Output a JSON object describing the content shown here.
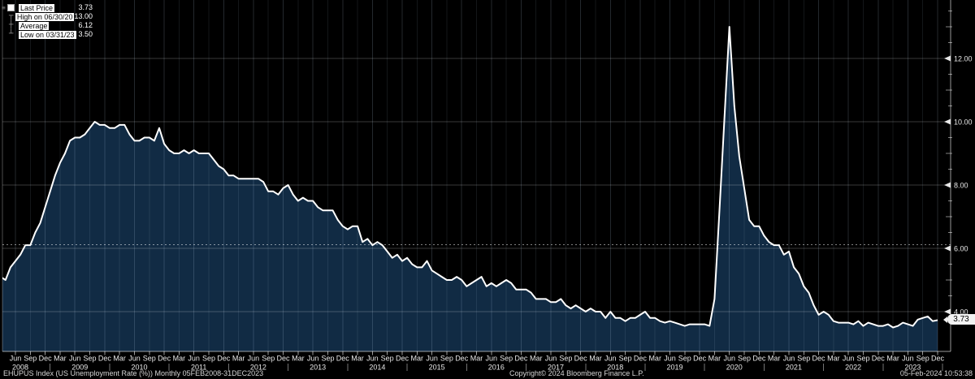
{
  "legend": {
    "rows": [
      {
        "label": "Last Price",
        "value": "3.73"
      },
      {
        "label": "High on 06/30/20",
        "value": "13.00"
      },
      {
        "label": "Average",
        "value": "6.12"
      },
      {
        "label": "Low on 03/31/23",
        "value": "3.50"
      }
    ]
  },
  "y_axis": {
    "tick_labels": [
      "4.00",
      "6.00",
      "8.00",
      "10.00",
      "12.00"
    ],
    "last_price_badge": "3.73"
  },
  "x_axis": {
    "tick_cycle": [
      "Mar",
      "Jun",
      "Sep",
      "Dec"
    ],
    "first_tick": "Jun 2008",
    "last_tick": "Dec 2023",
    "years": [
      "2008",
      "2009",
      "2010",
      "2011",
      "2012",
      "2013",
      "2014",
      "2015",
      "2016",
      "2017",
      "2018",
      "2019",
      "2020",
      "2021",
      "2022",
      "2023"
    ]
  },
  "footer": {
    "left": "EHUPUS Index (US Unemployment Rate (%))  Monthly 05FEB2008-31DEC2023",
    "center": "Copyright© 2024 Bloomberg Finance L.P.",
    "right": "05-Feb-2024 10:53:38"
  },
  "colors": {
    "background": "#000000",
    "area_fill": "#112b44",
    "line": "#ffffff",
    "grid_horizontal": "rgba(255,255,255,0.22)",
    "grid_vertical_minor": "rgba(173,200,224,0.11)",
    "grid_vertical_major": "rgba(173,200,224,0.20)",
    "average_line": "rgba(255,255,255,0.5)",
    "axis": "rgba(255,255,255,0.6)",
    "tick_text": "#e8e8e8",
    "badge_bg": "#f2f2f2"
  },
  "chart_data": {
    "type": "area",
    "title": "EHUPUS Index (US Unemployment Rate (%)) Monthly",
    "x_start": "2008-02",
    "x_end": "2023-12",
    "x_frequency": "monthly",
    "ylabel": "Unemployment Rate (%)",
    "ylim": [
      2.8,
      13.9
    ],
    "y_gridlines": [
      4,
      6,
      8,
      10,
      12
    ],
    "grid": true,
    "legend_position": "top-left",
    "average_line": 6.12,
    "high": {
      "date": "06/30/20",
      "value": 13.0
    },
    "low": {
      "date": "03/31/23",
      "value": 3.5
    },
    "last_price": {
      "date": "12/31/23",
      "value": 3.73
    },
    "values": [
      4.9,
      5.1,
      5.0,
      5.4,
      5.6,
      5.8,
      6.1,
      6.1,
      6.5,
      6.8,
      7.3,
      7.8,
      8.3,
      8.7,
      9.0,
      9.4,
      9.5,
      9.5,
      9.6,
      9.8,
      10.0,
      9.9,
      9.9,
      9.8,
      9.8,
      9.9,
      9.9,
      9.6,
      9.4,
      9.4,
      9.5,
      9.5,
      9.4,
      9.8,
      9.3,
      9.1,
      9.0,
      9.0,
      9.1,
      9.0,
      9.1,
      9.0,
      9.0,
      9.0,
      8.8,
      8.6,
      8.5,
      8.3,
      8.3,
      8.2,
      8.2,
      8.2,
      8.2,
      8.2,
      8.1,
      7.8,
      7.8,
      7.7,
      7.9,
      8.0,
      7.7,
      7.5,
      7.6,
      7.5,
      7.5,
      7.3,
      7.2,
      7.2,
      7.2,
      6.9,
      6.7,
      6.6,
      6.7,
      6.7,
      6.2,
      6.3,
      6.1,
      6.2,
      6.1,
      5.9,
      5.7,
      5.8,
      5.6,
      5.7,
      5.5,
      5.4,
      5.4,
      5.6,
      5.3,
      5.2,
      5.1,
      5.0,
      5.0,
      5.1,
      5.0,
      4.8,
      4.9,
      5.0,
      5.1,
      4.8,
      4.9,
      4.8,
      4.9,
      5.0,
      4.9,
      4.7,
      4.7,
      4.7,
      4.6,
      4.4,
      4.4,
      4.4,
      4.3,
      4.3,
      4.4,
      4.2,
      4.1,
      4.2,
      4.1,
      4.0,
      4.1,
      4.0,
      4.0,
      3.8,
      4.0,
      3.8,
      3.8,
      3.7,
      3.8,
      3.8,
      3.9,
      4.0,
      3.8,
      3.8,
      3.7,
      3.65,
      3.7,
      3.65,
      3.6,
      3.55,
      3.6,
      3.6,
      3.6,
      3.6,
      3.55,
      4.4,
      7.2,
      10.1,
      13.0,
      10.5,
      8.9,
      7.9,
      6.9,
      6.7,
      6.7,
      6.4,
      6.2,
      6.1,
      6.1,
      5.8,
      5.9,
      5.4,
      5.2,
      4.8,
      4.6,
      4.2,
      3.9,
      4.0,
      3.9,
      3.7,
      3.65,
      3.65,
      3.65,
      3.6,
      3.7,
      3.55,
      3.65,
      3.6,
      3.55,
      3.55,
      3.6,
      3.5,
      3.55,
      3.65,
      3.6,
      3.55,
      3.75,
      3.8,
      3.85,
      3.7,
      3.73
    ]
  }
}
